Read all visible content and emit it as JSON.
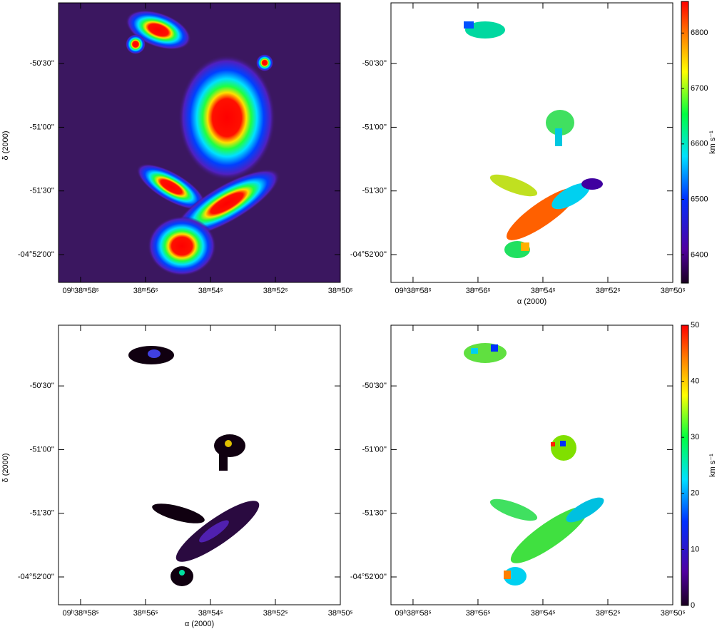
{
  "labels": {
    "dec": "δ (2000)",
    "ra": "α (2000)",
    "unit": "km s⁻¹"
  },
  "ra_axis": {
    "lim": [
      58.68,
      50
    ],
    "ticks": [
      {
        "value": 58,
        "label": "09ʰ38ᵐ58ˢ"
      },
      {
        "value": 56,
        "label": "38ᵐ56ˢ"
      },
      {
        "value": 54,
        "label": "38ᵐ54ˢ"
      },
      {
        "value": 52,
        "label": "38ᵐ52ˢ"
      },
      {
        "value": 50,
        "label": "38ᵐ50ˢ"
      }
    ]
  },
  "dec_axis": {
    "lim": [
      -133.1,
      -1.4
    ],
    "ticks": [
      {
        "value": -30,
        "label": "-50'30''"
      },
      {
        "value": -60,
        "label": "-51'00''"
      },
      {
        "value": -90,
        "label": "-51'30''"
      },
      {
        "value": -120,
        "label": "-04°52'00''"
      }
    ]
  },
  "colorbars": [
    {
      "lim": [
        6349,
        6857
      ],
      "ticks": [
        6400,
        6500,
        6600,
        6700,
        6800
      ]
    },
    {
      "lim": [
        0,
        50
      ],
      "ticks": [
        0,
        10,
        20,
        30,
        40,
        50
      ]
    }
  ]
}
